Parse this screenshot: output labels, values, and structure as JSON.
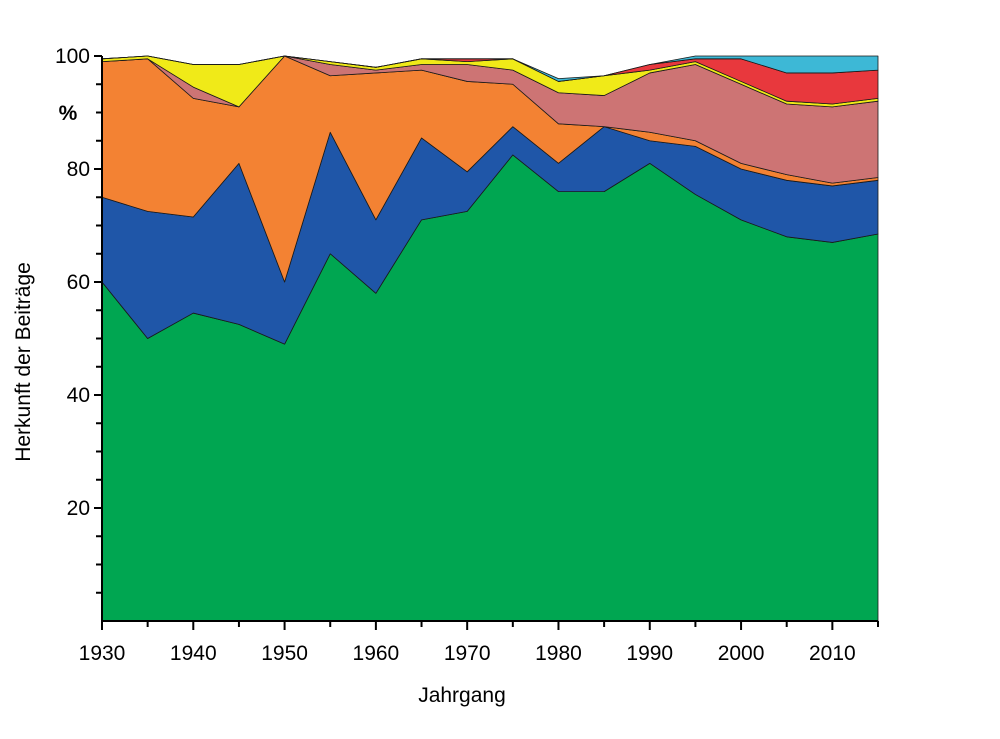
{
  "chart_data": {
    "type": "area",
    "stacked": true,
    "title": "",
    "xlabel": "Jahrgang",
    "ylabel": "Herkunft der Beiträge",
    "y_unit_label": "%",
    "xlim": [
      1930,
      2015
    ],
    "ylim": [
      0,
      100
    ],
    "x_ticks": [
      1930,
      1940,
      1950,
      1960,
      1970,
      1980,
      1990,
      2000,
      2010
    ],
    "y_ticks_labeled": [
      20,
      40,
      60,
      80,
      100
    ],
    "y_tick_step_minor": 5,
    "x_tick_step_minor": 5,
    "grid": false,
    "legend": "none",
    "x": [
      1930,
      1935,
      1940,
      1945,
      1950,
      1955,
      1960,
      1965,
      1970,
      1975,
      1980,
      1985,
      1990,
      1995,
      2000,
      2005,
      2010,
      2015
    ],
    "series": [
      {
        "color": "#00a651",
        "values": [
          60.0,
          50.0,
          54.5,
          52.5,
          49.0,
          65.0,
          58.0,
          71.0,
          72.5,
          82.5,
          76.0,
          76.0,
          81.0,
          75.5,
          71.0,
          68.0,
          67.0,
          68.5
        ]
      },
      {
        "color": "#1f56a8",
        "values": [
          15.0,
          22.5,
          17.0,
          28.5,
          11.0,
          21.5,
          13.0,
          14.5,
          7.0,
          5.0,
          5.0,
          11.5,
          4.0,
          8.5,
          9.0,
          10.0,
          10.0,
          9.5
        ]
      },
      {
        "color": "#f38233",
        "values": [
          24.0,
          27.0,
          21.0,
          10.0,
          40.0,
          10.0,
          26.0,
          12.0,
          16.0,
          7.5,
          7.0,
          0.0,
          1.5,
          1.0,
          1.0,
          1.0,
          0.5,
          0.5
        ]
      },
      {
        "color": "#cd7474",
        "values": [
          0.0,
          0.0,
          2.0,
          0.0,
          0.0,
          2.0,
          0.5,
          1.0,
          3.0,
          2.5,
          5.5,
          5.5,
          10.5,
          13.5,
          14.0,
          12.5,
          13.5,
          13.5
        ]
      },
      {
        "color": "#f0ea18",
        "values": [
          0.5,
          0.5,
          4.0,
          7.5,
          0.0,
          0.5,
          0.5,
          1.0,
          0.5,
          2.0,
          2.0,
          3.5,
          0.5,
          0.5,
          0.5,
          0.5,
          0.5,
          0.5
        ]
      },
      {
        "color": "#e8383d",
        "values": [
          0.0,
          0.0,
          0.0,
          0.0,
          0.0,
          0.0,
          0.0,
          0.0,
          0.5,
          0.0,
          0.0,
          0.0,
          1.0,
          0.5,
          4.0,
          5.0,
          5.5,
          5.0
        ]
      },
      {
        "color": "#3db8d6",
        "values": [
          0.0,
          0.0,
          0.0,
          0.0,
          0.0,
          0.0,
          0.0,
          0.0,
          0.0,
          0.0,
          0.5,
          0.0,
          0.0,
          0.5,
          0.5,
          3.0,
          3.0,
          2.5
        ]
      }
    ]
  }
}
